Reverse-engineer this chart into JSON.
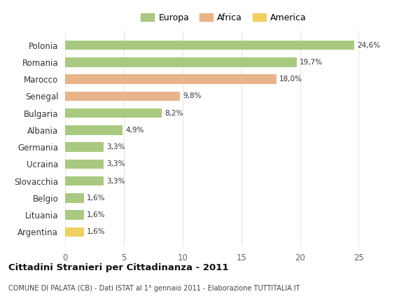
{
  "categories": [
    "Polonia",
    "Romania",
    "Marocco",
    "Senegal",
    "Bulgaria",
    "Albania",
    "Germania",
    "Ucraina",
    "Slovacchia",
    "Belgio",
    "Lituania",
    "Argentina"
  ],
  "values": [
    24.6,
    19.7,
    18.0,
    9.8,
    8.2,
    4.9,
    3.3,
    3.3,
    3.3,
    1.6,
    1.6,
    1.6
  ],
  "labels": [
    "24,6%",
    "19,7%",
    "18,0%",
    "9,8%",
    "8,2%",
    "4,9%",
    "3,3%",
    "3,3%",
    "3,3%",
    "1,6%",
    "1,6%",
    "1,6%"
  ],
  "colors": [
    "#a8c97f",
    "#a8c97f",
    "#e8b48a",
    "#e8b48a",
    "#a8c97f",
    "#a8c97f",
    "#a8c97f",
    "#a8c97f",
    "#a8c97f",
    "#a8c97f",
    "#a8c97f",
    "#f0d060"
  ],
  "legend_labels": [
    "Europa",
    "Africa",
    "America"
  ],
  "legend_colors": [
    "#a8c97f",
    "#e8b48a",
    "#f0d060"
  ],
  "title": "Cittadini Stranieri per Cittadinanza - 2011",
  "subtitle": "COMUNE DI PALATA (CB) - Dati ISTAT al 1° gennaio 2011 - Elaborazione TUTTITALIA.IT",
  "xlim": [
    0,
    27
  ],
  "xticks": [
    0,
    5,
    10,
    15,
    20,
    25
  ],
  "bg_color": "#ffffff",
  "grid_color": "#e8e8d8",
  "bar_height": 0.55
}
